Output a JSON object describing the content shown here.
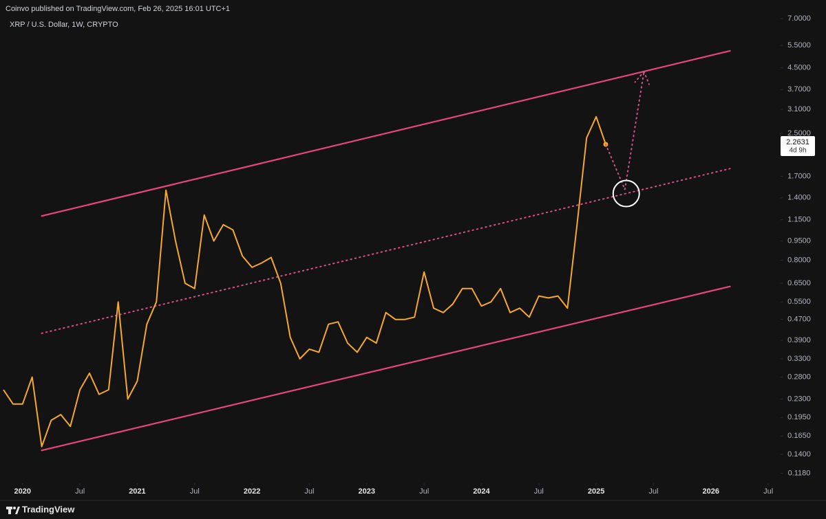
{
  "header": {
    "publisher": "Coinvo published on TradingView.com, Feb 26, 2025 16:01 UTC+1",
    "symbol": "XRP / U.S. Dollar, 1W, CRYPTO"
  },
  "chart_data": {
    "type": "line",
    "x": [
      "2019-11",
      "2019-12",
      "2020-01",
      "2020-02",
      "2020-03",
      "2020-04",
      "2020-05",
      "2020-06",
      "2020-07",
      "2020-08",
      "2020-09",
      "2020-10",
      "2020-11",
      "2020-12",
      "2021-01",
      "2021-02",
      "2021-03",
      "2021-04",
      "2021-05",
      "2021-06",
      "2021-07",
      "2021-08",
      "2021-09",
      "2021-10",
      "2021-11",
      "2021-12",
      "2022-01",
      "2022-02",
      "2022-03",
      "2022-04",
      "2022-05",
      "2022-06",
      "2022-07",
      "2022-08",
      "2022-09",
      "2022-10",
      "2022-11",
      "2022-12",
      "2023-01",
      "2023-02",
      "2023-03",
      "2023-04",
      "2023-05",
      "2023-06",
      "2023-07",
      "2023-08",
      "2023-09",
      "2023-10",
      "2023-11",
      "2023-12",
      "2024-01",
      "2024-02",
      "2024-03",
      "2024-04",
      "2024-05",
      "2024-06",
      "2024-07",
      "2024-08",
      "2024-09",
      "2024-10",
      "2024-11",
      "2024-12",
      "2025-01",
      "2025-02"
    ],
    "color": "#f7a928",
    "values": [
      0.25,
      0.22,
      0.22,
      0.28,
      0.15,
      0.19,
      0.2,
      0.18,
      0.25,
      0.29,
      0.24,
      0.25,
      0.55,
      0.23,
      0.27,
      0.45,
      0.55,
      1.5,
      0.95,
      0.65,
      0.62,
      1.2,
      0.95,
      1.1,
      1.05,
      0.83,
      0.75,
      0.78,
      0.82,
      0.65,
      0.4,
      0.33,
      0.36,
      0.35,
      0.45,
      0.46,
      0.38,
      0.35,
      0.4,
      0.38,
      0.5,
      0.47,
      0.47,
      0.48,
      0.72,
      0.52,
      0.5,
      0.54,
      0.62,
      0.62,
      0.53,
      0.55,
      0.62,
      0.5,
      0.52,
      0.48,
      0.58,
      0.57,
      0.58,
      0.52,
      1.1,
      2.4,
      2.9,
      2.2631
    ],
    "log_scale": true,
    "grid": false,
    "xlim": [
      "2019-11",
      "2026-08"
    ],
    "xticks": [
      {
        "value": "2020-01",
        "label": "2020"
      },
      {
        "value": "2020-07",
        "label": "Jul"
      },
      {
        "value": "2021-01",
        "label": "2021"
      },
      {
        "value": "2021-07",
        "label": "Jul"
      },
      {
        "value": "2022-01",
        "label": "2022"
      },
      {
        "value": "2022-07",
        "label": "Jul"
      },
      {
        "value": "2023-01",
        "label": "2023"
      },
      {
        "value": "2023-07",
        "label": "Jul"
      },
      {
        "value": "2024-01",
        "label": "2024"
      },
      {
        "value": "2024-07",
        "label": "Jul"
      },
      {
        "value": "2025-01",
        "label": "2025"
      },
      {
        "value": "2025-07",
        "label": "Jul"
      },
      {
        "value": "2026-01",
        "label": "2026"
      },
      {
        "value": "2026-07",
        "label": "Jul"
      }
    ],
    "ylim": [
      0.11,
      8.27
    ],
    "yticks": [
      {
        "value": 0.118,
        "label": "0.1180"
      },
      {
        "value": 0.14,
        "label": "0.1400"
      },
      {
        "value": 0.165,
        "label": "0.1650"
      },
      {
        "value": 0.195,
        "label": "0.1950"
      },
      {
        "value": 0.23,
        "label": "0.2300"
      },
      {
        "value": 0.28,
        "label": "0.2800"
      },
      {
        "value": 0.33,
        "label": "0.3300"
      },
      {
        "value": 0.39,
        "label": "0.3900"
      },
      {
        "value": 0.47,
        "label": "0.4700"
      },
      {
        "value": 0.55,
        "label": "0.5500"
      },
      {
        "value": 0.65,
        "label": "0.6500"
      },
      {
        "value": 0.8,
        "label": "0.8000"
      },
      {
        "value": 0.95,
        "label": "0.9500"
      },
      {
        "value": 1.15,
        "label": "1.1500"
      },
      {
        "value": 1.4,
        "label": "1.4000"
      },
      {
        "value": 1.7,
        "label": "1.7000"
      },
      {
        "value": 2.5,
        "label": "2.5000"
      },
      {
        "value": 3.1,
        "label": "3.1000"
      },
      {
        "value": 3.7,
        "label": "3.7000"
      },
      {
        "value": 4.5,
        "label": "4.5000"
      },
      {
        "value": 5.5,
        "label": "5.5000"
      },
      {
        "value": 7,
        "label": "7.0000"
      }
    ],
    "trendlines": [
      {
        "x": [
          "2020-03",
          "2026-03"
        ],
        "values": [
          1.19,
          5.24
        ],
        "style": "solid",
        "color": "#e8457d"
      },
      {
        "x": [
          "2020-03",
          "2026-03"
        ],
        "values": [
          0.415,
          1.82
        ],
        "style": "dotted",
        "color": "#d94f8a"
      },
      {
        "x": [
          "2020-03",
          "2026-03"
        ],
        "values": [
          0.145,
          0.632
        ],
        "style": "solid",
        "color": "#e8457d"
      }
    ],
    "projection": {
      "x": [
        "2025-02",
        "2025-04",
        "2025-06"
      ],
      "values": [
        2.2631,
        1.51,
        4.35
      ],
      "color": "#d94f8a"
    },
    "last_price": 2.2631,
    "countdown": "4d 9h"
  },
  "footer": "TradingView"
}
